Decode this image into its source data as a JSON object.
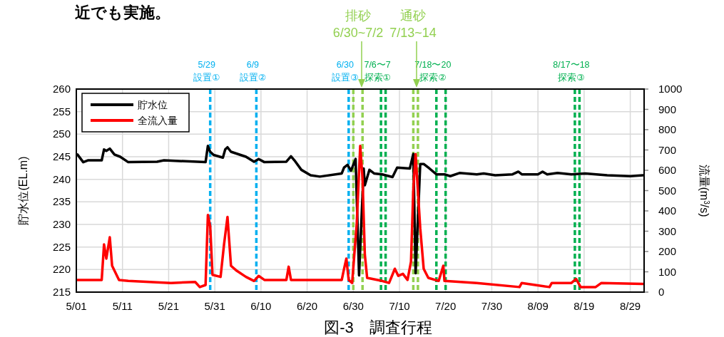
{
  "chart_data": {
    "type": "line",
    "ylabel": "貯水位(EL.m)",
    "y2label": "流量(m$^{3}$/s)",
    "xlim": [
      "--05-01",
      "--09-01"
    ],
    "xticks": [
      {
        "value": "--05-01",
        "label": "5/01"
      },
      {
        "value": "--05-11",
        "label": "5/11"
      },
      {
        "value": "--05-21",
        "label": "5/21"
      },
      {
        "value": "--05-31",
        "label": "5/31"
      },
      {
        "value": "--06-10",
        "label": "6/10"
      },
      {
        "value": "--06-20",
        "label": "6/20"
      },
      {
        "value": "--06-30",
        "label": "6/30"
      },
      {
        "value": "--07-10",
        "label": "7/10"
      },
      {
        "value": "--07-20",
        "label": "7/20"
      },
      {
        "value": "--07-30",
        "label": "7/30"
      },
      {
        "value": "--08-09",
        "label": "8/09"
      },
      {
        "value": "--08-19",
        "label": "8/19"
      },
      {
        "value": "--08-29",
        "label": "8/29"
      }
    ],
    "ylim": [
      215,
      260
    ],
    "yticks": [
      215,
      220,
      225,
      230,
      235,
      240,
      245,
      250,
      255,
      260
    ],
    "y2lim": [
      0,
      1000
    ],
    "y2ticks": [
      0,
      100,
      200,
      300,
      400,
      500,
      600,
      700,
      800,
      900,
      1000
    ],
    "grid": true,
    "legend": "top left",
    "line_style": "solid",
    "marker": "none",
    "series": [
      {
        "name": "貯水位",
        "color": "#000000",
        "x": [
          "--05-01T06:00",
          "--05-02T12:00",
          "--05-03T12:00",
          "--05-06T12:00",
          "--05-07T00:00",
          "--05-07T12:00",
          "--05-08T06:00",
          "--05-09T06:00",
          "--05-10T12:00",
          "--05-12T06:00",
          "--05-18T12:00",
          "--05-20T00:00",
          "--05-29T00:00",
          "--05-29T12:00",
          "--05-30T00:00",
          "--05-30T18:00",
          "--06-01T18:00",
          "--06-02T06:00",
          "--06-02T18:00",
          "--06-03T12:00",
          "--06-06T18:00",
          "--06-08T12:00",
          "--06-09T12:00",
          "--06-10T18:00",
          "--06-15T12:00",
          "--06-16T12:00",
          "--06-17T06:00",
          "--06-18T18:00",
          "--06-20T18:00",
          "--06-22T18:00",
          "--06-27T12:00",
          "--06-28T00:00",
          "--06-28T18:00",
          "--06-29T12:00",
          "--06-30T12:00",
          "--07-01T06:00",
          "--07-02T06:00",
          "--07-02T12:00",
          "--07-03T12:00",
          "--07-04T12:00",
          "--07-06T06:00",
          "--07-08T12:00",
          "--07-09T12:00",
          "--07-12T06:00",
          "--07-13T00:00",
          "--07-13T12:00",
          "--07-14T12:00",
          "--07-15T06:00",
          "--07-16T12:00",
          "--07-18T00:00",
          "--07-19T18:00",
          "--07-21T00:00",
          "--07-23T00:00",
          "--07-26T18:00",
          "--07-28T06:00",
          "--07-30T18:00",
          "--08-03T12:00",
          "--08-04T18:00",
          "--08-05T12:00",
          "--08-09T00:00",
          "--08-10T00:00",
          "--08-11T00:00",
          "--08-13T06:00",
          "--08-16T06:00",
          "--08-19T06:00",
          "--08-24T00:00",
          "--08-29T00:00",
          "--08-31T18:00"
        ],
        "values": [
          245.5,
          243.8,
          244.2,
          244.2,
          246.6,
          246.3,
          246.8,
          245.5,
          245.0,
          243.8,
          243.9,
          244.2,
          243.8,
          247.4,
          246.1,
          245.4,
          244.8,
          246.6,
          247.1,
          246.1,
          245.0,
          243.9,
          244.5,
          243.8,
          243.9,
          245.1,
          244.2,
          242.1,
          240.9,
          240.6,
          241.3,
          242.6,
          243.2,
          241.9,
          244.5,
          218.7,
          242.4,
          238.7,
          242.1,
          241.3,
          241.1,
          240.5,
          242.6,
          242.4,
          245.6,
          219.2,
          243.4,
          243.4,
          242.4,
          241.1,
          241.1,
          240.7,
          241.4,
          241.1,
          241.3,
          240.9,
          241.1,
          241.7,
          241.1,
          241.1,
          241.7,
          241.1,
          241.4,
          241.1,
          241.3,
          240.9,
          240.7,
          240.9
        ]
      },
      {
        "name": "全流入量",
        "color": "#ff0000",
        "axis": "y2",
        "x": [
          "--05-01T06:00",
          "--05-06T12:00",
          "--05-07T00:00",
          "--05-07T12:00",
          "--05-08T06:00",
          "--05-08T18:00",
          "--05-10T06:00",
          "--05-12T06:00",
          "--05-21T12:00",
          "--05-26T18:00",
          "--05-27T18:00",
          "--05-29T00:00",
          "--05-29T12:00",
          "--05-30T00:00",
          "--05-30T12:00",
          "--06-01T06:00",
          "--06-02T00:00",
          "--06-02T18:00",
          "--06-03T12:00",
          "--06-04T18:00",
          "--06-06T18:00",
          "--06-08T12:00",
          "--06-09T12:00",
          "--06-10T18:00",
          "--06-15T12:00",
          "--06-16T00:00",
          "--06-16T12:00",
          "--06-23T12:00",
          "--06-27T12:00",
          "--06-28T00:00",
          "--06-28T12:00",
          "--06-29T00:00",
          "--06-29T18:00",
          "--06-30T18:00",
          "--07-01T12:00",
          "--07-02T00:00",
          "--07-02T12:00",
          "--07-03T00:00",
          "--07-06T06:00",
          "--07-07T18:00",
          "--07-09T00:00",
          "--07-09T18:00",
          "--07-10T18:00",
          "--07-11T18:00",
          "--07-12T12:00",
          "--07-13T00:00",
          "--07-13T12:00",
          "--07-14T12:00",
          "--07-15T06:00",
          "--07-16T06:00",
          "--07-18T12:00",
          "--07-19T12:00",
          "--07-19T18:00",
          "--07-26T18:00",
          "--08-05T00:00",
          "--08-05T12:00",
          "--08-11T12:00",
          "--08-12T00:00",
          "--08-16T06:00",
          "--08-17T06:00",
          "--08-18T06:00",
          "--08-21T12:00",
          "--08-22T18:00",
          "--08-31T18:00"
        ],
        "values": [
          60,
          60,
          235,
          165,
          270,
          130,
          60,
          55,
          45,
          50,
          25,
          35,
          380,
          325,
          85,
          75,
          235,
          370,
          130,
          105,
          75,
          55,
          80,
          60,
          60,
          125,
          60,
          60,
          60,
          115,
          165,
          60,
          45,
          340,
          720,
          560,
          185,
          70,
          55,
          45,
          115,
          80,
          90,
          60,
          150,
          505,
          680,
          315,
          115,
          70,
          55,
          130,
          55,
          45,
          25,
          45,
          25,
          45,
          45,
          65,
          25,
          25,
          45,
          40
        ]
      }
    ],
    "ref_lines": [
      {
        "axis": "x",
        "value": "--05-30",
        "label": "5/29\n設置①",
        "color": "#00b0f0",
        "line_style": "dashed"
      },
      {
        "axis": "x",
        "value": "--06-09",
        "label": "6/9\n設置②",
        "color": "#00b0f0",
        "line_style": "dashed"
      },
      {
        "axis": "x",
        "value": "--06-29",
        "label": "6/30\n設置③",
        "color": "#00b0f0",
        "line_style": "dashed"
      },
      {
        "axis": "x",
        "value": "--06-30",
        "color": "#92d050",
        "line_style": "dashed"
      },
      {
        "axis": "x",
        "value": "--07-02",
        "color": "#92d050",
        "line_style": "dashed"
      },
      {
        "axis": "x",
        "value": "--07-06",
        "label": "7/6〜7\n探索①",
        "color": "#00b050",
        "line_style": "dashed"
      },
      {
        "axis": "x",
        "value": "--07-07",
        "color": "#00b050",
        "line_style": "dashed"
      },
      {
        "axis": "x",
        "value": "--07-13",
        "color": "#92d050",
        "line_style": "dashed"
      },
      {
        "axis": "x",
        "value": "--07-14",
        "color": "#92d050",
        "line_style": "dashed"
      },
      {
        "axis": "x",
        "value": "--07-18",
        "label": "7/18〜20\n探索②",
        "color": "#00b050",
        "line_style": "dashed"
      },
      {
        "axis": "x",
        "value": "--07-20",
        "color": "#00b050",
        "line_style": "dashed"
      },
      {
        "axis": "x",
        "value": "--08-17",
        "label": "8/17〜18\n探索③",
        "color": "#00b050",
        "line_style": "dashed"
      },
      {
        "axis": "x",
        "value": "--08-18",
        "color": "#00b050",
        "line_style": "dashed"
      }
    ],
    "annotations": [
      "近でも実施。",
      "排砂\n6/30~7/2",
      "通砂\n7/13~14",
      "図-3　調査行程"
    ]
  }
}
